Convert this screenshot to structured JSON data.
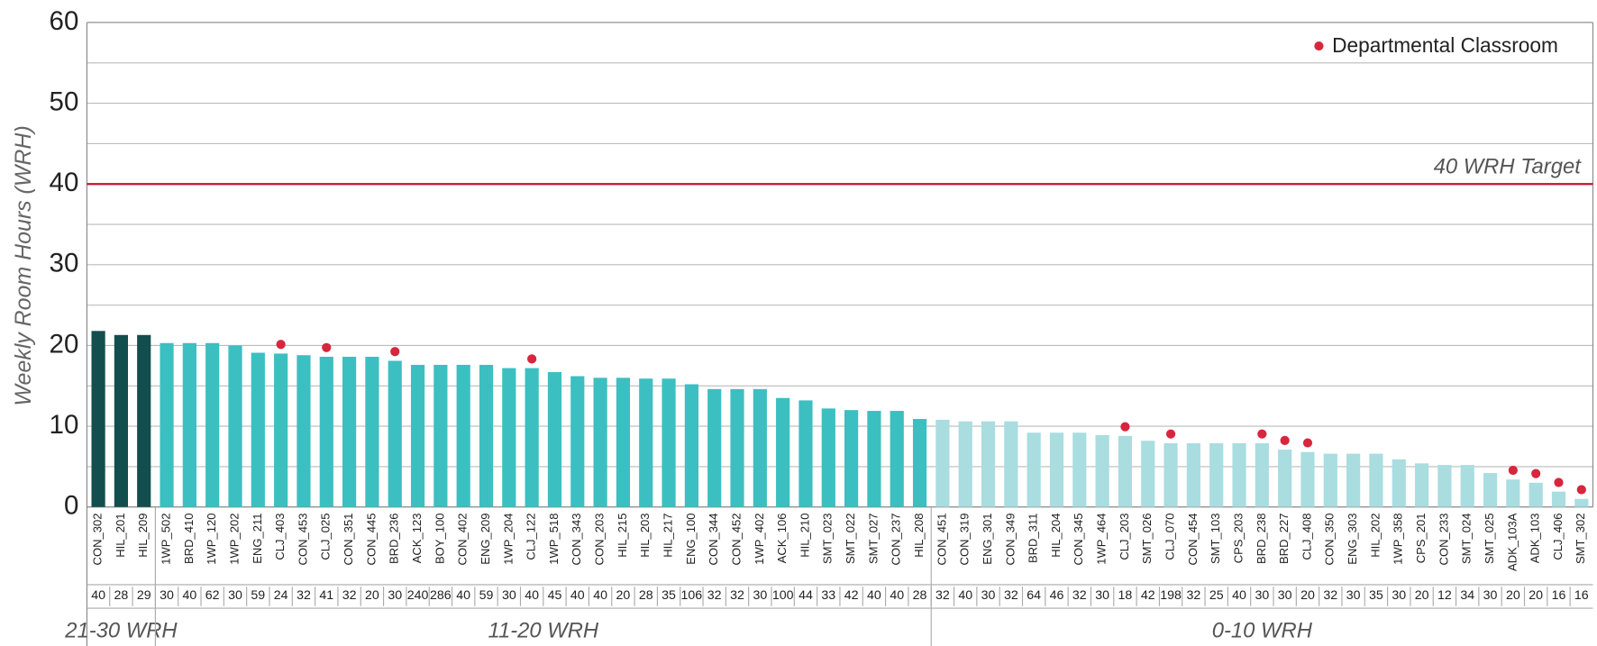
{
  "chart_data": {
    "type": "bar",
    "ylabel": "Weekly Room Hours (WRH)",
    "ylim": [
      0,
      60
    ],
    "yticks": [
      0,
      10,
      20,
      30,
      40,
      50,
      60
    ],
    "yminorticks": [
      5,
      15,
      25,
      35,
      45,
      55
    ],
    "grid": true,
    "categories": [
      "CON_302",
      "HIL_201",
      "HIL_209",
      "1WP_502",
      "BRD_410",
      "1WP_120",
      "1WP_202",
      "ENG_211",
      "CLJ_403",
      "CON_453",
      "CLJ_025",
      "CON_351",
      "CON_445",
      "BRD_236",
      "ACK_123",
      "BOY_100",
      "CON_402",
      "ENG_209",
      "1WP_204",
      "CLJ_122",
      "1WP_518",
      "CON_343",
      "CON_203",
      "HIL_215",
      "HIL_203",
      "HIL_217",
      "ENG_100",
      "CON_344",
      "CON_452",
      "1WP_402",
      "ACK_106",
      "HIL_210",
      "SMT_023",
      "SMT_022",
      "SMT_027",
      "CON_237",
      "HIL_208",
      "CON_451",
      "CON_319",
      "ENG_301",
      "CON_349",
      "BRD_311",
      "HIL_204",
      "CON_345",
      "1WP_464",
      "CLJ_203",
      "SMT_026",
      "CLJ_070",
      "CON_454",
      "SMT_103",
      "CPS_203",
      "BRD_238",
      "BRD_227",
      "CLJ_408",
      "CON_350",
      "ENG_303",
      "HIL_202",
      "1WP_358",
      "CPS_201",
      "CON_233",
      "SMT_024",
      "SMT_025",
      "ADK_103A",
      "ADK_103",
      "CLJ_406",
      "SMT_302"
    ],
    "values": [
      21.8,
      21.3,
      21.3,
      20.3,
      20.3,
      20.3,
      20.0,
      19.1,
      19.0,
      18.8,
      18.6,
      18.6,
      18.6,
      18.1,
      17.6,
      17.6,
      17.6,
      17.6,
      17.2,
      17.2,
      16.7,
      16.2,
      16.0,
      16.0,
      15.9,
      15.9,
      15.2,
      14.6,
      14.6,
      14.6,
      13.5,
      13.2,
      12.2,
      12.0,
      11.9,
      11.9,
      10.9,
      10.8,
      10.6,
      10.6,
      10.6,
      9.2,
      9.2,
      9.2,
      8.9,
      8.8,
      8.2,
      7.9,
      7.9,
      7.9,
      7.9,
      7.9,
      7.1,
      6.8,
      6.6,
      6.6,
      6.6,
      5.9,
      5.4,
      5.2,
      5.2,
      4.2,
      3.4,
      3.0,
      1.9,
      1.0
    ],
    "seats": [
      "40",
      "28",
      "29",
      "30",
      "40",
      "62",
      "30",
      "59",
      "24",
      "32",
      "41",
      "32",
      "20",
      "30",
      "240",
      "286",
      "40",
      "59",
      "30",
      "40",
      "45",
      "40",
      "40",
      "20",
      "28",
      "35",
      "106",
      "32",
      "32",
      "30",
      "100",
      "44",
      "33",
      "42",
      "40",
      "40",
      "28",
      "32",
      "40",
      "30",
      "32",
      "64",
      "46",
      "32",
      "30",
      "18",
      "42",
      "198",
      "32",
      "25",
      "40",
      "30",
      "30",
      "20",
      "32",
      "30",
      "35",
      "30",
      "20",
      "12",
      "34",
      "30",
      "20",
      "20",
      "16",
      "16"
    ],
    "groups": [
      {
        "label": "21-30 WRH",
        "color": "#134e4e",
        "from": "CON_302",
        "to": "HIL_209"
      },
      {
        "label": "11-20 WRH",
        "color": "#3cbfc1",
        "from": "1WP_502",
        "to": "HIL_208"
      },
      {
        "label": "0-10 WRH",
        "color": "#a9dde0",
        "from": "CON_451",
        "to": "SMT_302"
      }
    ],
    "markers": {
      "name": "Departmental Classroom",
      "color": "#d7263d",
      "categories": [
        "CLJ_403",
        "CLJ_025",
        "BRD_236",
        "CLJ_122",
        "CLJ_203",
        "CLJ_070",
        "BRD_238",
        "BRD_227",
        "CLJ_408",
        "ADK_103A",
        "ADK_103",
        "CLJ_406",
        "SMT_302"
      ]
    },
    "legend": "top-right",
    "target": {
      "value": 40,
      "label": "40 WRH Target",
      "color": "#c8102e"
    }
  }
}
